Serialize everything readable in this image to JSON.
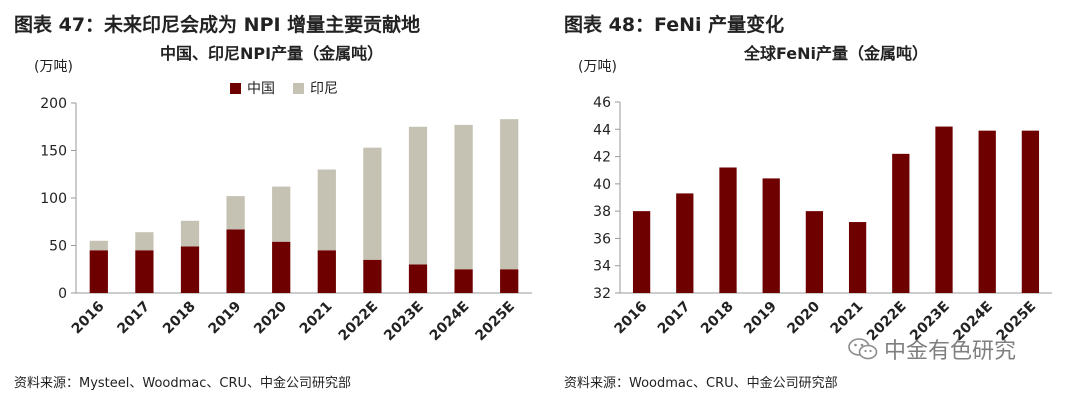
{
  "figures": [
    {
      "id": "left",
      "fig_title": "图表 47：未来印尼会成为 NPI 增量主要贡献地",
      "source": "资料来源：Mysteel、Woodmac、CRU、中金公司研究部"
    },
    {
      "id": "right",
      "fig_title": "图表 48：FeNi 产量变化",
      "source": "资料来源：Woodmac、CRU、中金公司研究部"
    }
  ],
  "watermark": {
    "text": "中金有色研究",
    "icon": "wechat-icon"
  },
  "colors": {
    "china": "#6e0000",
    "indonesia": "#c5c2b4",
    "feni": "#6e0000",
    "axis": "#999999"
  },
  "chart_data": [
    {
      "type": "bar",
      "stacked": true,
      "title": "中国、印尼NPI产量（金属吨）",
      "unit_label": "(万吨)",
      "categories": [
        "2016",
        "2017",
        "2018",
        "2019",
        "2020",
        "2021",
        "2022E",
        "2023E",
        "2024E",
        "2025E"
      ],
      "series": [
        {
          "name": "中国",
          "color": "#6e0000",
          "values": [
            45,
            45,
            49,
            67,
            54,
            45,
            35,
            30,
            25,
            25
          ]
        },
        {
          "name": "印尼",
          "color": "#c5c2b4",
          "values": [
            10,
            19,
            27,
            35,
            58,
            85,
            118,
            145,
            152,
            158
          ]
        }
      ],
      "ylim": [
        0,
        200
      ],
      "yticks": [
        0,
        50,
        100,
        150,
        200
      ],
      "legend": "top"
    },
    {
      "type": "bar",
      "title": "全球FeNi产量（金属吨）",
      "unit_label": "(万吨)",
      "categories": [
        "2016",
        "2017",
        "2018",
        "2019",
        "2020",
        "2021",
        "2022E",
        "2023E",
        "2024E",
        "2025E"
      ],
      "values": [
        38.0,
        39.3,
        41.2,
        40.4,
        38.0,
        37.2,
        42.2,
        44.2,
        43.9,
        43.9
      ],
      "color": "#6e0000",
      "ylim": [
        32,
        46
      ],
      "yticks": [
        32,
        34,
        36,
        38,
        40,
        42,
        44,
        46
      ]
    }
  ]
}
